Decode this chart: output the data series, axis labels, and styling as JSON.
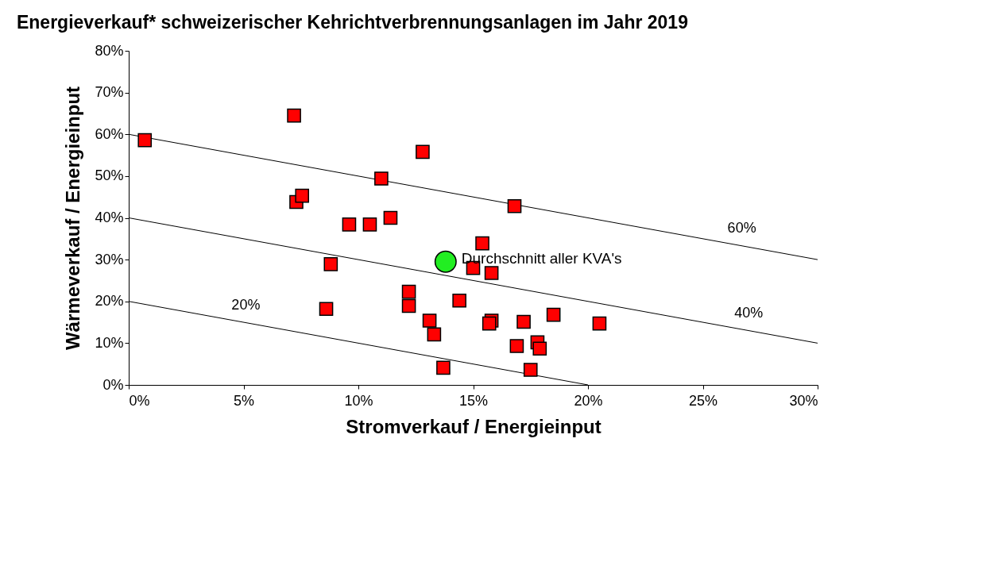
{
  "chart_data": {
    "type": "scatter",
    "title": "Energieverkauf* schweizerischer Kehrichtverbrennungsanlagen im Jahr 2019",
    "xlabel": "Stromverkauf / Energieinput",
    "ylabel": "Wärmeverkauf / Energieinput",
    "xlim": [
      0,
      30
    ],
    "ylim": [
      0,
      80
    ],
    "xticks": [
      {
        "value": 0,
        "label": "0%"
      },
      {
        "value": 5,
        "label": "5%"
      },
      {
        "value": 10,
        "label": "10%"
      },
      {
        "value": 15,
        "label": "15%"
      },
      {
        "value": 20,
        "label": "20%"
      },
      {
        "value": 25,
        "label": "25%"
      },
      {
        "value": 30,
        "label": "30%"
      }
    ],
    "yticks": [
      {
        "value": 0,
        "label": "0%"
      },
      {
        "value": 10,
        "label": "10%"
      },
      {
        "value": 20,
        "label": "20%"
      },
      {
        "value": 30,
        "label": "30%"
      },
      {
        "value": 40,
        "label": "40%"
      },
      {
        "value": 50,
        "label": "50%"
      },
      {
        "value": 60,
        "label": "60%"
      },
      {
        "value": 70,
        "label": "70%"
      },
      {
        "value": 80,
        "label": "80%"
      }
    ],
    "grid": false,
    "legend": false,
    "series": [
      {
        "type": "line",
        "name": "60%",
        "color": "#000000",
        "marker": "none",
        "x": [
          0,
          30
        ],
        "values": [
          60,
          30
        ]
      },
      {
        "type": "line",
        "name": "40%",
        "color": "#000000",
        "marker": "none",
        "x": [
          0,
          30
        ],
        "values": [
          40,
          10
        ]
      },
      {
        "type": "line",
        "name": "20%",
        "color": "#000000",
        "marker": "none",
        "x": [
          0,
          20
        ],
        "values": [
          20,
          0
        ]
      },
      {
        "type": "scatter",
        "color": "#ff0000",
        "marker": "square",
        "x": [
          0.7,
          7.2,
          7.3,
          7.55,
          9.6,
          10.5,
          11.0,
          11.4,
          12.8,
          16.8,
          15.4,
          15.0,
          15.8,
          8.8,
          8.6,
          12.2,
          12.2,
          14.4,
          13.1,
          13.3,
          13.7,
          15.8,
          15.7,
          17.2,
          18.5,
          20.5,
          16.9,
          17.8,
          17.9,
          17.5
        ],
        "values": [
          58.6,
          64.5,
          43.8,
          45.3,
          38.4,
          38.4,
          49.4,
          40.0,
          55.8,
          42.8,
          33.9,
          28.0,
          26.8,
          28.9,
          18.2,
          22.3,
          18.9,
          20.2,
          15.4,
          12.1,
          4.1,
          15.4,
          14.7,
          15.1,
          16.8,
          14.7,
          9.3,
          10.2,
          8.7,
          3.6
        ]
      },
      {
        "type": "scatter",
        "name": "Durchschnitt aller KVA's",
        "color": "#22ee22",
        "marker": "circle",
        "x": [
          13.8
        ],
        "values": [
          29.5
        ]
      }
    ]
  }
}
